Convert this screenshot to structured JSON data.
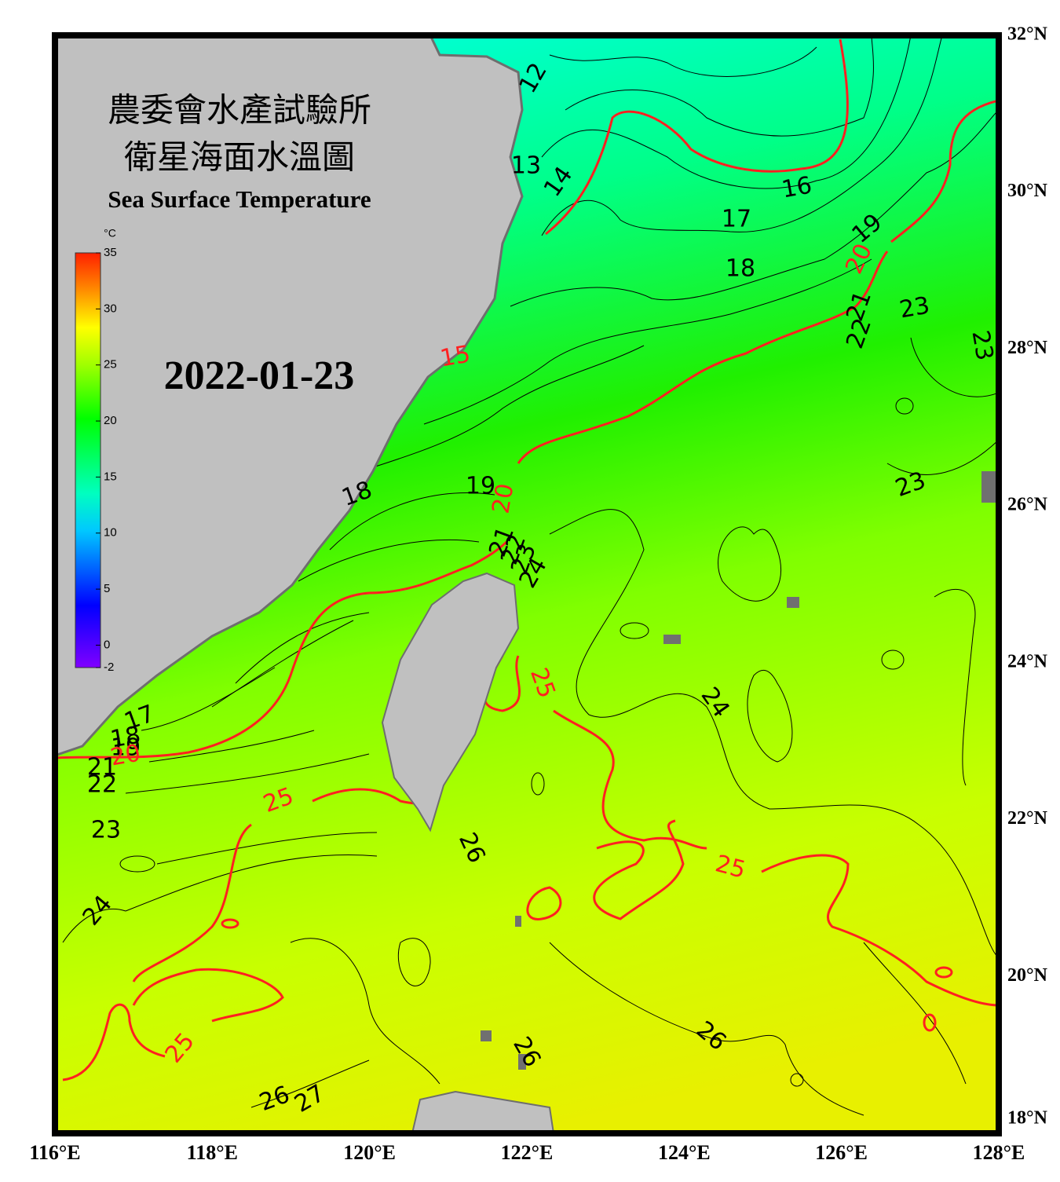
{
  "header": {
    "title_zh_1": "農委會水產試驗所",
    "title_zh_2": "衛星海面水溫圖",
    "title_en": "Sea Surface Temperature",
    "date": "2022-01-23"
  },
  "colorbar": {
    "unit": "°C",
    "min": -2,
    "max": 35,
    "ticks": [
      35,
      30,
      25,
      20,
      15,
      10,
      5,
      0,
      -2
    ]
  },
  "map": {
    "xlim": [
      116,
      128
    ],
    "ylim": [
      18,
      32
    ],
    "xticks": [
      {
        "value": 116,
        "label": "116°E"
      },
      {
        "value": 118,
        "label": "118°E"
      },
      {
        "value": 120,
        "label": "120°E"
      },
      {
        "value": 122,
        "label": "122°E"
      },
      {
        "value": 124,
        "label": "124°E"
      },
      {
        "value": 126,
        "label": "126°E"
      },
      {
        "value": 128,
        "label": "128°E"
      }
    ],
    "yticks": [
      {
        "value": 18,
        "label": "18°N"
      },
      {
        "value": 20,
        "label": "20°N"
      },
      {
        "value": 22,
        "label": "22°N"
      },
      {
        "value": 24,
        "label": "24°N"
      },
      {
        "value": 26,
        "label": "26°N"
      },
      {
        "value": 28,
        "label": "28°N"
      },
      {
        "value": 30,
        "label": "30°N"
      },
      {
        "value": 32,
        "label": "32°N"
      }
    ],
    "grid": true,
    "isotherm_labels": [
      12,
      13,
      14,
      16,
      17,
      18,
      19,
      20,
      21,
      22,
      23,
      23,
      15,
      23,
      18,
      19,
      20,
      21,
      22,
      23,
      24,
      25,
      24,
      17,
      18,
      19,
      20,
      21,
      22,
      25,
      23,
      26,
      25,
      24,
      26,
      25,
      26,
      26,
      27
    ]
  }
}
